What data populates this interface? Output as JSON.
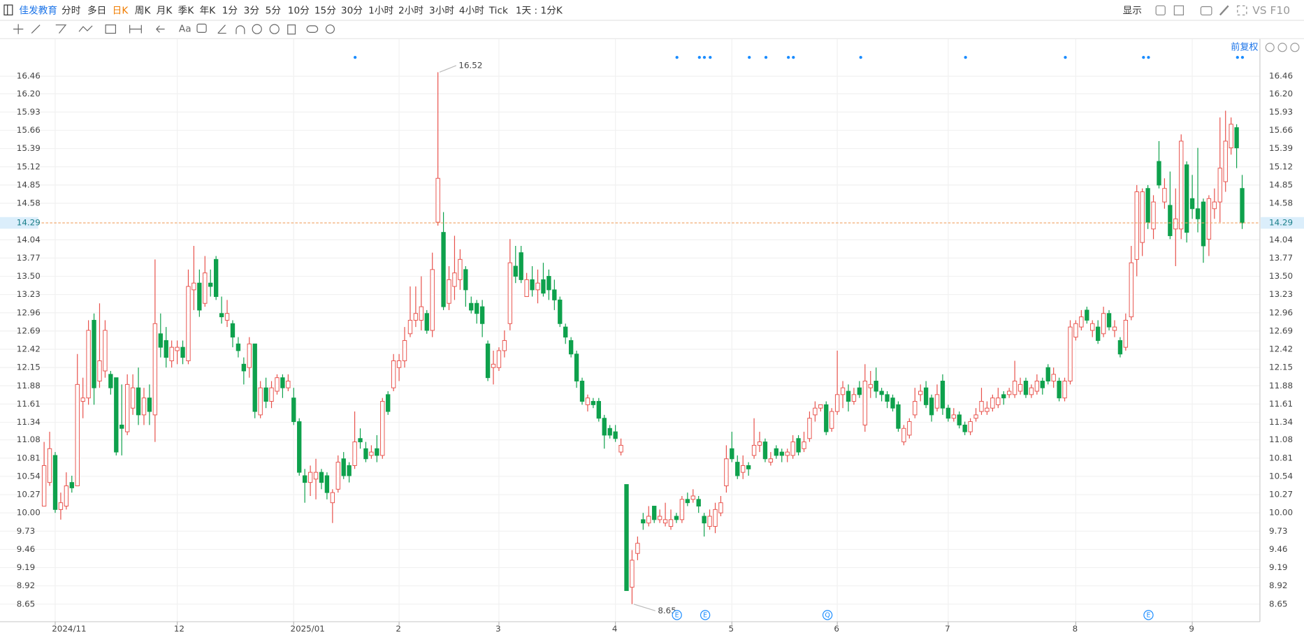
{
  "toolbar": {
    "stock": "佳发教育",
    "periods": [
      "分时",
      "多日",
      "日K",
      "周K",
      "月K",
      "季K",
      "年K",
      "1分",
      "3分",
      "5分",
      "10分",
      "15分",
      "30分",
      "1小时",
      "2小时",
      "3小时",
      "4小时",
      "Tick"
    ],
    "period_selector": "1天 : 1分K",
    "display": "显示",
    "compare": "VS F10",
    "text_tool": "Aa"
  },
  "chart_data": {
    "type": "candlestick",
    "adjustment": "前复权",
    "categories": [
      null,
      null,
      "2024/11",
      null,
      null,
      null,
      null,
      null,
      null,
      null,
      null,
      null,
      null,
      null,
      null,
      null,
      null,
      null,
      null,
      null,
      null,
      null,
      null,
      null,
      "12",
      null,
      null,
      null,
      null,
      null,
      null,
      null,
      null,
      null,
      null,
      null,
      null,
      null,
      null,
      null,
      null,
      null,
      null,
      null,
      null,
      "2025/01",
      null,
      null,
      null,
      null,
      null,
      null,
      null,
      null,
      null,
      null,
      null,
      null,
      null,
      null,
      null,
      null,
      null,
      null,
      "2",
      null,
      null,
      null,
      null,
      null,
      null,
      null,
      null,
      null,
      null,
      null,
      null,
      null,
      null,
      null,
      null,
      null,
      "3",
      null,
      null,
      null,
      null,
      null,
      null,
      null,
      null,
      null,
      null,
      null,
      null,
      null,
      null,
      null,
      null,
      null,
      null,
      null,
      null,
      "4",
      null,
      null,
      null,
      null,
      null,
      null,
      null,
      null,
      null,
      null,
      null,
      null,
      null,
      null,
      null,
      null,
      null,
      null,
      null,
      null,
      "5",
      null,
      null,
      null,
      null,
      null,
      null,
      null,
      null,
      null,
      null,
      null,
      null,
      null,
      null,
      null,
      null,
      null,
      null,
      "6",
      null,
      null,
      null,
      null,
      null,
      null,
      null,
      null,
      null,
      null,
      null,
      null,
      null,
      null,
      null,
      null,
      null,
      null,
      null,
      "7",
      null,
      null,
      null,
      null,
      null,
      null,
      null,
      null,
      null,
      null,
      null,
      null,
      null,
      null,
      null,
      null,
      null,
      null,
      null,
      null,
      null,
      null,
      "8",
      null,
      null,
      null,
      null,
      null,
      null,
      null,
      null,
      null,
      null,
      null,
      null,
      null,
      null,
      null,
      null,
      null,
      null,
      null,
      null,
      "9",
      null,
      null,
      null,
      null,
      null,
      null,
      null,
      null,
      null
    ],
    "open": [
      10.1,
      10.45,
      10.85,
      10.05,
      10.1,
      10.45,
      10.4,
      11.65,
      11.7,
      12.85,
      11.95,
      12.1,
      12.05,
      12.0,
      11.3,
      11.2,
      11.55,
      11.85,
      11.45,
      11.7,
      11.45,
      12.65,
      12.55,
      12.25,
      12.4,
      12.45,
      12.25,
      13.3,
      13.4,
      13.1,
      13.4,
      13.75,
      12.95,
      12.85,
      12.8,
      12.5,
      12.2,
      12.15,
      12.5,
      11.45,
      11.85,
      11.65,
      11.8,
      12.0,
      11.85,
      11.7,
      11.35,
      10.55,
      10.45,
      10.5,
      10.6,
      10.55,
      10.15,
      10.35,
      10.8,
      10.7,
      10.7,
      11.1,
      10.95,
      10.85,
      10.95,
      10.85,
      11.75,
      11.85,
      12.15,
      12.25,
      12.65,
      12.85,
      12.85,
      12.95,
      12.7,
      14.3,
      14.15,
      13.1,
      13.35,
      13.45,
      13.6,
      13.1,
      13.1,
      13.05,
      12.5,
      12.15,
      12.15,
      12.4,
      12.8,
      13.65,
      13.85,
      13.2,
      13.45,
      13.3,
      13.45,
      13.5,
      13.3,
      13.15,
      12.75,
      12.55,
      12.35,
      11.95,
      11.6,
      11.65,
      11.65,
      11.4,
      11.25,
      11.2,
      10.9,
      10.42,
      8.9,
      9.4,
      9.9,
      9.85,
      10.1,
      9.9,
      9.85,
      9.8,
      9.95,
      9.9,
      10.2,
      10.2,
      10.2,
      9.95,
      9.8,
      9.8,
      10.0,
      10.4,
      10.95,
      10.75,
      10.6,
      10.7,
      10.85,
      11.0,
      11.05,
      10.75,
      10.95,
      10.9,
      10.85,
      10.85,
      11.1,
      10.95,
      11.1,
      11.45,
      11.55,
      11.6,
      11.25,
      11.5,
      11.75,
      11.8,
      11.65,
      11.85,
      11.3,
      11.85,
      11.95,
      11.8,
      11.75,
      11.7,
      11.6,
      11.05,
      11.15,
      11.45,
      11.75,
      11.85,
      11.7,
      11.55,
      11.95,
      11.55,
      11.4,
      11.45,
      11.3,
      11.2,
      11.4,
      11.5,
      11.5,
      11.55,
      11.6,
      11.75,
      11.75,
      11.75,
      11.8,
      11.95,
      11.75,
      11.8,
      11.95,
      12.15,
      11.95,
      11.95,
      11.7,
      11.95,
      12.6,
      12.75,
      13.0,
      12.7,
      12.75,
      12.65,
      12.95,
      12.7,
      12.55,
      12.45,
      12.9,
      13.75,
      14.0,
      14.8,
      14.2,
      15.2,
      14.6,
      14.55,
      14.2,
      14.2,
      15.15,
      14.65,
      14.5,
      14.6,
      14.05,
      14.5,
      14.6,
      14.9,
      15.4,
      15.7,
      14.8
    ],
    "high": [
      11.05,
      11.2,
      10.9,
      10.3,
      10.6,
      10.55,
      12.35,
      12.0,
      12.85,
      12.95,
      13.1,
      12.85,
      12.1,
      12.0,
      11.9,
      12.05,
      12.05,
      12.15,
      11.85,
      11.9,
      13.75,
      12.95,
      12.75,
      12.55,
      12.55,
      12.55,
      13.6,
      13.95,
      13.6,
      13.8,
      13.6,
      13.8,
      13.2,
      13.15,
      12.85,
      12.6,
      12.3,
      12.6,
      12.5,
      11.95,
      12.0,
      11.95,
      12.05,
      12.05,
      12.05,
      11.85,
      11.4,
      10.65,
      10.7,
      10.8,
      10.65,
      10.6,
      10.35,
      10.85,
      10.9,
      10.75,
      11.5,
      11.25,
      11.05,
      11.0,
      11.15,
      11.7,
      11.8,
      12.35,
      12.35,
      12.75,
      13.35,
      13.35,
      13.5,
      13.0,
      13.85,
      16.52,
      14.45,
      13.65,
      14.1,
      13.9,
      13.65,
      13.2,
      13.15,
      13.15,
      12.55,
      12.4,
      12.45,
      12.7,
      14.05,
      13.95,
      13.95,
      13.55,
      13.65,
      13.6,
      13.7,
      13.6,
      13.45,
      13.2,
      12.8,
      12.6,
      12.4,
      12.0,
      11.75,
      11.7,
      11.7,
      11.45,
      11.3,
      11.3,
      11.1,
      10.42,
      9.45,
      9.65,
      10.0,
      10.1,
      10.1,
      10.05,
      10.15,
      10.05,
      10.0,
      10.25,
      10.3,
      10.35,
      10.25,
      10.0,
      10.05,
      10.15,
      10.25,
      11.0,
      11.2,
      10.85,
      10.85,
      10.75,
      11.4,
      11.2,
      11.1,
      10.9,
      11.0,
      10.95,
      10.95,
      11.15,
      11.15,
      11.2,
      11.5,
      11.65,
      11.6,
      11.65,
      11.55,
      12.4,
      11.95,
      11.9,
      11.85,
      11.95,
      12.2,
      12.1,
      12.15,
      11.85,
      11.8,
      11.75,
      11.65,
      11.3,
      11.4,
      11.85,
      11.9,
      11.95,
      11.75,
      11.9,
      12.05,
      11.6,
      11.55,
      11.5,
      11.35,
      11.4,
      11.55,
      11.85,
      11.65,
      11.75,
      11.85,
      11.8,
      11.85,
      12.25,
      12.0,
      12.0,
      11.9,
      12.05,
      12.0,
      12.2,
      12.15,
      12.0,
      12.0,
      12.85,
      12.85,
      13.0,
      13.05,
      12.85,
      12.85,
      13.05,
      13.0,
      12.85,
      12.6,
      12.95,
      13.95,
      14.85,
      14.8,
      14.85,
      14.7,
      15.5,
      14.95,
      15.05,
      14.8,
      15.6,
      15.2,
      15.0,
      15.4,
      14.65,
      14.7,
      14.8,
      15.85,
      15.95,
      15.85,
      15.75,
      15.0
    ],
    "low": [
      10.1,
      10.4,
      10.0,
      9.9,
      10.05,
      10.3,
      10.4,
      11.4,
      11.6,
      11.6,
      11.85,
      12.0,
      11.75,
      10.85,
      10.85,
      11.15,
      11.45,
      11.3,
      11.3,
      11.3,
      11.05,
      12.3,
      12.15,
      12.15,
      12.2,
      12.2,
      12.2,
      13.0,
      12.9,
      13.05,
      13.2,
      13.15,
      12.8,
      12.75,
      12.45,
      12.3,
      11.9,
      12.0,
      11.4,
      11.4,
      11.55,
      11.55,
      11.75,
      11.7,
      11.8,
      11.3,
      10.55,
      10.15,
      10.25,
      10.2,
      10.35,
      10.2,
      9.85,
      10.3,
      10.5,
      10.45,
      10.65,
      10.95,
      10.75,
      10.8,
      10.75,
      10.8,
      11.45,
      11.8,
      11.95,
      12.15,
      12.6,
      12.75,
      12.7,
      12.65,
      12.6,
      14.25,
      13.0,
      13.0,
      13.15,
      13.3,
      13.05,
      12.95,
      12.8,
      12.6,
      11.95,
      11.9,
      12.1,
      12.3,
      12.7,
      13.4,
      13.4,
      13.2,
      13.2,
      13.1,
      13.2,
      13.15,
      13.0,
      12.75,
      12.5,
      12.3,
      11.85,
      11.6,
      11.5,
      11.55,
      11.35,
      10.95,
      11.1,
      11.05,
      10.85,
      8.85,
      8.65,
      9.3,
      9.75,
      9.8,
      9.85,
      9.85,
      9.8,
      9.75,
      9.85,
      9.85,
      10.1,
      10.15,
      10.0,
      9.65,
      9.75,
      9.7,
      9.95,
      10.3,
      10.75,
      10.5,
      10.5,
      10.55,
      10.8,
      10.9,
      10.75,
      10.7,
      10.8,
      10.75,
      10.75,
      10.8,
      10.85,
      10.9,
      11.05,
      11.35,
      11.5,
      11.15,
      11.2,
      11.45,
      11.55,
      11.5,
      11.6,
      11.7,
      11.2,
      11.7,
      11.7,
      11.65,
      11.55,
      11.5,
      11.2,
      11.0,
      11.1,
      11.4,
      11.65,
      11.55,
      11.35,
      11.5,
      11.45,
      11.35,
      11.35,
      11.25,
      11.15,
      11.15,
      11.35,
      11.45,
      11.45,
      11.5,
      11.55,
      11.6,
      11.7,
      11.7,
      11.75,
      11.7,
      11.7,
      11.75,
      11.75,
      11.9,
      11.85,
      11.65,
      11.65,
      11.9,
      12.55,
      12.7,
      12.8,
      12.6,
      12.5,
      12.6,
      12.7,
      12.6,
      12.3,
      12.4,
      12.85,
      13.5,
      13.8,
      14.2,
      14.05,
      14.8,
      14.5,
      14.05,
      13.65,
      14.05,
      14.0,
      14.35,
      14.15,
      13.7,
      13.8,
      14.35,
      14.3,
      14.75,
      15.3,
      15.1,
      14.2
    ],
    "close": [
      10.7,
      10.95,
      10.05,
      10.15,
      10.4,
      10.37,
      11.9,
      11.7,
      12.7,
      11.85,
      12.25,
      12.7,
      11.85,
      10.9,
      11.25,
      11.9,
      11.85,
      11.45,
      11.7,
      11.5,
      12.8,
      12.45,
      12.3,
      12.45,
      12.45,
      12.3,
      13.35,
      13.4,
      13.0,
      13.55,
      13.35,
      13.2,
      12.9,
      12.95,
      12.6,
      12.4,
      12.1,
      12.5,
      11.5,
      11.85,
      11.65,
      11.85,
      12.0,
      11.85,
      11.95,
      11.35,
      10.6,
      10.45,
      10.6,
      10.6,
      10.45,
      10.3,
      10.3,
      10.75,
      10.55,
      10.55,
      11.05,
      11.05,
      10.8,
      10.9,
      10.85,
      11.65,
      11.5,
      12.25,
      12.25,
      12.55,
      12.85,
      12.95,
      13.05,
      12.7,
      13.6,
      14.95,
      13.05,
      13.45,
      13.55,
      13.75,
      13.3,
      13.0,
      12.95,
      12.8,
      12.0,
      12.2,
      12.4,
      12.55,
      13.7,
      13.5,
      13.45,
      13.45,
      13.3,
      13.4,
      13.25,
      13.3,
      13.15,
      12.8,
      12.6,
      12.35,
      11.95,
      11.65,
      11.7,
      11.6,
      11.4,
      11.15,
      11.15,
      11.1,
      11.0,
      8.85,
      9.3,
      9.55,
      9.85,
      9.95,
      9.9,
      9.95,
      9.9,
      9.9,
      9.9,
      10.2,
      10.15,
      10.25,
      10.1,
      9.85,
      9.95,
      10.05,
      10.15,
      10.8,
      10.8,
      10.55,
      10.7,
      10.65,
      11.0,
      11.05,
      10.8,
      10.8,
      10.85,
      10.85,
      10.9,
      11.05,
      10.9,
      11.05,
      11.4,
      11.55,
      11.6,
      11.2,
      11.5,
      11.75,
      11.85,
      11.65,
      11.75,
      11.75,
      11.95,
      11.9,
      11.8,
      11.75,
      11.65,
      11.55,
      11.25,
      11.25,
      11.35,
      11.65,
      11.8,
      11.6,
      11.45,
      11.75,
      11.55,
      11.4,
      11.45,
      11.3,
      11.2,
      11.35,
      11.45,
      11.65,
      11.55,
      11.7,
      11.7,
      11.7,
      11.8,
      11.95,
      11.9,
      11.75,
      11.85,
      11.95,
      11.85,
      11.95,
      12.05,
      11.7,
      11.95,
      12.75,
      12.8,
      12.9,
      12.85,
      12.8,
      12.55,
      12.95,
      12.75,
      12.75,
      12.35,
      12.85,
      13.7,
      14.75,
      14.75,
      14.3,
      14.6,
      14.85,
      14.8,
      14.1,
      14.35,
      15.5,
      14.15,
      14.5,
      14.35,
      13.95,
      14.65,
      14.6,
      15.1,
      15.5,
      15.75,
      15.4,
      14.29
    ],
    "up_color": "#e8504a",
    "down_color": "#0ea14c",
    "ylim": [
      8.39,
      16.85
    ],
    "yticks": [
      8.65,
      8.92,
      9.19,
      9.46,
      9.73,
      {
        "value": 10,
        "label": "10.00"
      },
      10.27,
      10.54,
      10.81,
      11.08,
      11.34,
      11.61,
      11.88,
      12.15,
      12.42,
      12.69,
      12.96,
      13.23,
      {
        "value": 13.5,
        "label": "13.50"
      },
      13.77,
      14.04,
      14.58,
      14.85,
      15.12,
      15.39,
      15.66,
      15.93,
      {
        "value": 16.2,
        "label": "16.20"
      },
      16.46
    ],
    "grid": true,
    "events": [
      "E",
      "E",
      "Q",
      "E"
    ]
  }
}
